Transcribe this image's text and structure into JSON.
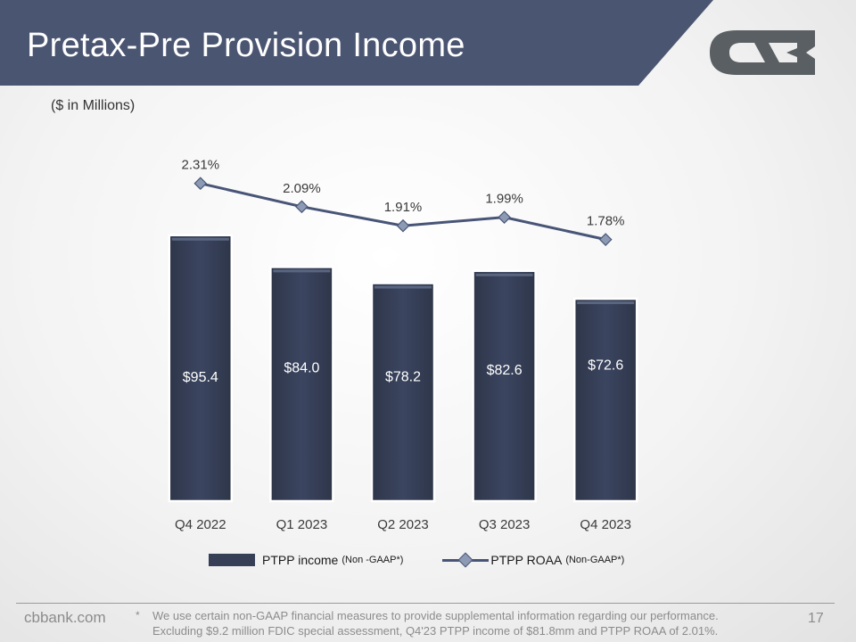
{
  "header": {
    "title": "Pretax-Pre Provision Income"
  },
  "logo": {
    "name": "cvb-logo-icon"
  },
  "units_label": "($ in Millions)",
  "colors": {
    "banner": "#4a5571",
    "bar": "#363f55",
    "line": "#485577",
    "marker": "#8d9ab3",
    "logo": "#5a5f63"
  },
  "chart_data": {
    "type": "bar",
    "categories": [
      "Q4 2022",
      "Q1 2023",
      "Q2 2023",
      "Q3 2023",
      "Q4 2023"
    ],
    "series": [
      {
        "name": "PTPP income",
        "name_note": "(Non -GAAP*)",
        "type": "bar",
        "values": [
          95.4,
          84.0,
          78.2,
          82.6,
          72.6
        ],
        "labels": [
          "$95.4",
          "$84.0",
          "$78.2",
          "$82.6",
          "$72.6"
        ]
      },
      {
        "name": "PTPP ROAA",
        "name_note": "(Non-GAAP*)",
        "type": "line",
        "values": [
          2.31,
          2.09,
          1.91,
          1.99,
          1.78
        ],
        "labels": [
          "2.31%",
          "2.09%",
          "1.91%",
          "1.99%",
          "1.78%"
        ]
      }
    ],
    "bar_ylim": [
      0,
      135
    ],
    "line_ylim": [
      0.8,
      3.2
    ],
    "legend": "bottom",
    "grid": false
  },
  "footer": {
    "site": "cbbank.com",
    "page": "17",
    "footnote_mark": "*",
    "footnote_lines": [
      "We use certain non-GAAP financial measures to provide supplemental information regarding our performance.",
      "Excluding $9.2 million FDIC special assessment, Q4'23 PTPP income of $81.8mm and PTPP ROAA of 2.01%."
    ]
  }
}
